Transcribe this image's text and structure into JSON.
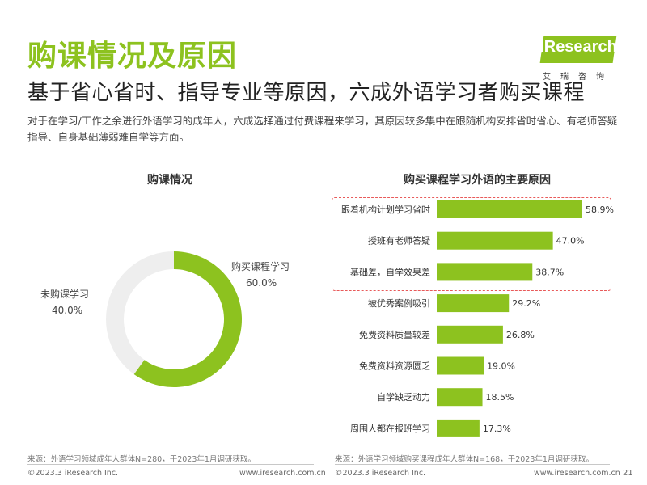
{
  "header": {
    "title": "购课情况及原因",
    "subtitle": "基于省心省时、指导专业等原因，六成外语学习者购买课程",
    "description": "对于在学习/工作之余进行外语学习的成年人，六成选择通过付费课程来学习，其原因较多集中在跟随机构安排省时省心、有老师答疑指导、自身基础薄弱难自学等方面。"
  },
  "logo": {
    "text": "iResearch",
    "subtext": "艾瑞咨询"
  },
  "colors": {
    "accent": "#8dc21f",
    "donut_rest": "#eeeeee",
    "highlight_border": "#e85a5a"
  },
  "chart_data": [
    {
      "type": "pie",
      "variant": "donut",
      "title": "购课情况",
      "slices": [
        {
          "label": "购买课程学习",
          "value": 60.0,
          "display": "60.0%"
        },
        {
          "label": "未购课学习",
          "value": 40.0,
          "display": "40.0%"
        }
      ],
      "source": "来源：外语学习领域成年人群体N=280，于2023年1月调研获取。"
    },
    {
      "type": "bar",
      "orientation": "horizontal",
      "title": "购买课程学习外语的主要原因",
      "categories": [
        "跟着机构计划学习省时",
        "授班有老师答疑",
        "基础差，自学效果差",
        "被优秀案例吸引",
        "免费资料质量较差",
        "免费资料资源匮乏",
        "自学缺乏动力",
        "周围人都在报班学习"
      ],
      "values": [
        58.9,
        47.0,
        38.7,
        29.2,
        26.8,
        19.0,
        18.5,
        17.3
      ],
      "value_labels": [
        "58.9%",
        "47.0%",
        "38.7%",
        "29.2%",
        "26.8%",
        "19.0%",
        "18.5%",
        "17.3%"
      ],
      "highlighted_count": 3,
      "source": "来源：外语学习领域购买课程成年人群体N=168，于2023年1月调研获取。"
    }
  ],
  "footer": {
    "copyright": "©2023.3 iResearch Inc.",
    "website": "www.iresearch.com.cn",
    "page": "21"
  }
}
